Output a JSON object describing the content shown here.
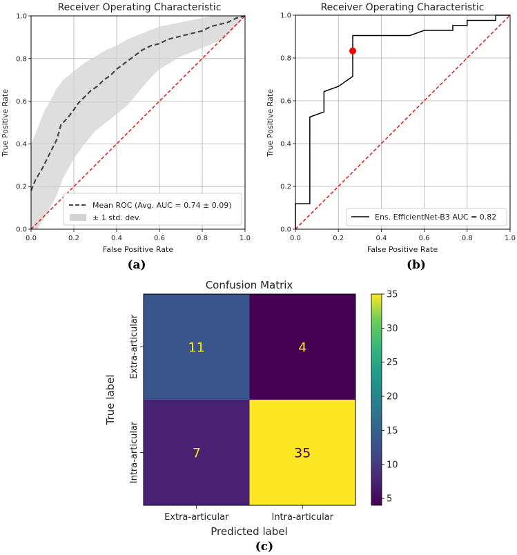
{
  "captions": [
    "(a)",
    "(b)",
    "(c)"
  ],
  "chart_data": [
    {
      "type": "line",
      "panel": "a",
      "title": "Receiver Operating Characteristic",
      "xlabel": "False Positive Rate",
      "ylabel": "True Positive Rate",
      "xlim": [
        0,
        1
      ],
      "ylim": [
        0,
        1
      ],
      "xticks": [
        "0.0",
        "0.2",
        "0.4",
        "0.6",
        "0.8",
        "1.0"
      ],
      "yticks": [
        "0.0",
        "0.2",
        "0.4",
        "0.6",
        "0.8",
        "1.0"
      ],
      "grid": true,
      "legend_position": "lower-right",
      "series": [
        {
          "name": "Mean ROC (Avg. AUC = 0.74 ± 0.09)",
          "style": "dashed",
          "color": "#444444",
          "x": [
            0.0,
            0.02,
            0.05,
            0.08,
            0.1,
            0.12,
            0.14,
            0.17,
            0.2,
            0.22,
            0.25,
            0.28,
            0.31,
            0.34,
            0.37,
            0.4,
            0.44,
            0.48,
            0.52,
            0.56,
            0.6,
            0.64,
            0.68,
            0.72,
            0.76,
            0.8,
            0.84,
            0.88,
            0.92,
            0.96,
            1.0
          ],
          "y": [
            0.18,
            0.23,
            0.28,
            0.34,
            0.38,
            0.42,
            0.49,
            0.52,
            0.56,
            0.59,
            0.62,
            0.65,
            0.67,
            0.7,
            0.72,
            0.75,
            0.78,
            0.81,
            0.84,
            0.86,
            0.87,
            0.89,
            0.9,
            0.91,
            0.92,
            0.93,
            0.95,
            0.96,
            0.97,
            0.99,
            1.0
          ]
        },
        {
          "name": "± 1 std. dev.",
          "style": "band",
          "color": "#d3d3d3",
          "x": [
            0.0,
            0.03,
            0.06,
            0.1,
            0.12,
            0.15,
            0.2,
            0.25,
            0.3,
            0.35,
            0.4,
            0.45,
            0.5,
            0.55,
            0.6,
            0.65,
            0.7,
            0.75,
            0.8,
            0.85,
            0.9,
            0.95,
            1.0
          ],
          "upper": [
            0.4,
            0.47,
            0.55,
            0.62,
            0.66,
            0.7,
            0.74,
            0.78,
            0.81,
            0.84,
            0.86,
            0.89,
            0.91,
            0.93,
            0.95,
            0.96,
            0.97,
            0.98,
            0.99,
            1.0,
            1.0,
            1.0,
            1.0
          ],
          "lower": [
            0.0,
            0.0,
            0.05,
            0.12,
            0.16,
            0.24,
            0.33,
            0.4,
            0.46,
            0.5,
            0.54,
            0.58,
            0.64,
            0.7,
            0.75,
            0.78,
            0.81,
            0.83,
            0.85,
            0.87,
            0.89,
            0.94,
            1.0
          ]
        },
        {
          "name": "chance",
          "style": "dashed",
          "color": "#e8201c",
          "x": [
            0,
            1
          ],
          "y": [
            0,
            1
          ]
        }
      ]
    },
    {
      "type": "line",
      "panel": "b",
      "title": "Receiver Operating Characteristic",
      "xlabel": "False Positive Rate",
      "ylabel": "True Positive Rate",
      "xlim": [
        0,
        1
      ],
      "ylim": [
        0,
        1
      ],
      "xticks": [
        "0.0",
        "0.2",
        "0.4",
        "0.6",
        "0.8",
        "1.0"
      ],
      "yticks": [
        "0.0",
        "0.2",
        "0.4",
        "0.6",
        "0.8",
        "1.0"
      ],
      "grid": true,
      "legend_position": "lower-right",
      "series": [
        {
          "name": "Ens. EfficientNet-B3 AUC = 0.82",
          "style": "solid",
          "color": "#000000",
          "x": [
            0.0,
            0.0,
            0.067,
            0.067,
            0.133,
            0.133,
            0.2,
            0.2,
            0.267,
            0.267,
            0.533,
            0.6,
            0.733,
            0.733,
            0.8,
            0.8,
            0.933,
            0.933,
            1.0
          ],
          "y": [
            0.0,
            0.119,
            0.119,
            0.524,
            0.548,
            0.643,
            0.667,
            0.667,
            0.714,
            0.905,
            0.905,
            0.929,
            0.929,
            0.952,
            0.952,
            0.976,
            0.976,
            1.0,
            1.0
          ]
        },
        {
          "name": "chance",
          "style": "dashed",
          "color": "#e8201c",
          "x": [
            0,
            1
          ],
          "y": [
            0,
            1
          ]
        }
      ],
      "operating_point": {
        "x": 0.267,
        "y": 0.833,
        "color": "#ff0000"
      }
    },
    {
      "type": "heatmap",
      "panel": "c",
      "title": "Confusion Matrix",
      "xlabel": "Predicted label",
      "ylabel": "True label",
      "row_labels": [
        "Extra-articular",
        "Intra-articular"
      ],
      "col_labels": [
        "Extra-articular",
        "Intra-articular"
      ],
      "values": [
        [
          11,
          4
        ],
        [
          7,
          35
        ]
      ],
      "cell_colors": [
        [
          "#3a548c",
          "#440154"
        ],
        [
          "#482172",
          "#fde725"
        ]
      ],
      "text_colors": [
        [
          "#fde725",
          "#fde725"
        ],
        [
          "#fde725",
          "#440154"
        ]
      ],
      "colorbar": {
        "min": 4,
        "max": 35,
        "ticks": [
          "5",
          "10",
          "15",
          "20",
          "25",
          "30",
          "35"
        ],
        "tick_values": [
          5,
          10,
          15,
          20,
          25,
          30,
          35
        ],
        "colormap": "viridis"
      }
    }
  ]
}
